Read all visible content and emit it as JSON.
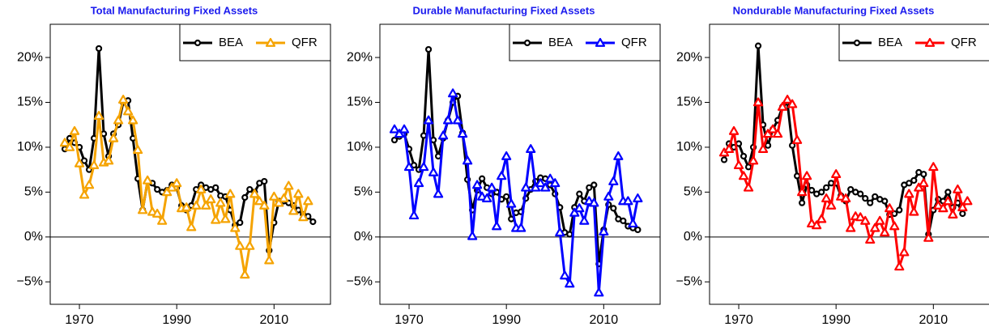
{
  "chart_data": [
    {
      "type": "line",
      "title": "Total Manufacturing Fixed Assets",
      "x": [
        1967,
        1968,
        1969,
        1970,
        1971,
        1972,
        1973,
        1974,
        1975,
        1976,
        1977,
        1978,
        1979,
        1980,
        1981,
        1982,
        1983,
        1984,
        1985,
        1986,
        1987,
        1988,
        1989,
        1990,
        1991,
        1992,
        1993,
        1994,
        1995,
        1996,
        1997,
        1998,
        1999,
        2000,
        2001,
        2002,
        2003,
        2004,
        2005,
        2006,
        2007,
        2008,
        2009,
        2010,
        2011,
        2012,
        2013,
        2014,
        2015,
        2016,
        2017,
        2018
      ],
      "series": [
        {
          "name": "BEA",
          "color": "#000000",
          "marker": "circle",
          "values": [
            9.8,
            11.0,
            10.5,
            10.0,
            8.5,
            7.5,
            11.0,
            21.0,
            11.5,
            9.0,
            11.5,
            12.5,
            15.0,
            15.2,
            11.0,
            6.5,
            3.0,
            6.2,
            6.0,
            5.3,
            5.0,
            5.2,
            5.8,
            5.5,
            3.5,
            3.0,
            3.5,
            5.3,
            5.8,
            5.5,
            5.3,
            5.5,
            4.6,
            4.5,
            3.0,
            1.3,
            1.6,
            4.4,
            5.3,
            5.0,
            6.0,
            6.2,
            -1.5,
            1.6,
            4.0,
            4.0,
            3.8,
            3.5,
            3.0,
            2.5,
            2.3,
            1.7
          ]
        },
        {
          "name": "QFR",
          "color": "#f5a300",
          "marker": "triangle",
          "values": [
            10.5,
            10.0,
            11.8,
            8.2,
            4.7,
            5.8,
            8.0,
            13.5,
            8.3,
            8.5,
            11.0,
            13.0,
            15.3,
            14.0,
            13.0,
            9.7,
            3.0,
            6.3,
            2.8,
            2.6,
            1.8,
            5.0,
            5.5,
            6.0,
            3.2,
            3.3,
            1.1,
            3.5,
            5.3,
            3.5,
            4.2,
            1.9,
            3.8,
            2.0,
            4.8,
            1.0,
            -1.0,
            -4.2,
            -1.0,
            4.8,
            4.0,
            3.5,
            -2.6,
            4.5,
            3.8,
            4.3,
            5.7,
            2.9,
            4.8,
            2.2,
            4.0,
            null
          ]
        }
      ],
      "xlim": [
        1964,
        2021.6
      ],
      "xticks": [
        1970,
        1990,
        2010
      ],
      "ylim": [
        -7.5,
        23.7
      ],
      "yticks": [
        {
          "value": -5,
          "label": "−5%"
        },
        {
          "value": 0,
          "label": "0%"
        },
        {
          "value": 5,
          "label": "5%"
        },
        {
          "value": 10,
          "label": "10%"
        },
        {
          "value": 15,
          "label": "15%"
        },
        {
          "value": 20,
          "label": "20%"
        }
      ],
      "hline": 0,
      "legend": "top-right"
    },
    {
      "type": "line",
      "title": "Durable Manufacturing Fixed Assets",
      "x": [
        1967,
        1968,
        1969,
        1970,
        1971,
        1972,
        1973,
        1974,
        1975,
        1976,
        1977,
        1978,
        1979,
        1980,
        1981,
        1982,
        1983,
        1984,
        1985,
        1986,
        1987,
        1988,
        1989,
        1990,
        1991,
        1992,
        1993,
        1994,
        1995,
        1996,
        1997,
        1998,
        1999,
        2000,
        2001,
        2002,
        2003,
        2004,
        2005,
        2006,
        2007,
        2008,
        2009,
        2010,
        2011,
        2012,
        2013,
        2014,
        2015,
        2016,
        2017,
        2018
      ],
      "series": [
        {
          "name": "BEA",
          "color": "#000000",
          "marker": "circle",
          "values": [
            10.8,
            11.2,
            11.5,
            9.8,
            8.0,
            7.5,
            11.3,
            20.9,
            10.8,
            9.0,
            11.0,
            13.0,
            15.0,
            15.7,
            11.6,
            6.4,
            3.0,
            5.2,
            6.5,
            5.5,
            4.8,
            5.0,
            4.2,
            4.5,
            2.0,
            2.7,
            2.8,
            4.3,
            5.3,
            6.2,
            6.6,
            6.5,
            5.8,
            4.8,
            3.3,
            0.5,
            0.3,
            3.3,
            4.8,
            4.0,
            5.5,
            5.8,
            -3.0,
            0.8,
            3.6,
            3.2,
            2.0,
            1.8,
            1.2,
            1.0,
            0.8,
            null
          ]
        },
        {
          "name": "QFR",
          "color": "#0000ff",
          "marker": "triangle",
          "values": [
            12.0,
            11.5,
            12.0,
            7.8,
            2.4,
            6.0,
            7.8,
            13.0,
            7.2,
            4.8,
            11.3,
            13.0,
            16.0,
            13.0,
            11.5,
            8.5,
            0.1,
            5.8,
            4.5,
            4.3,
            5.5,
            1.2,
            6.8,
            9.0,
            3.7,
            1.0,
            1.0,
            5.5,
            9.8,
            5.5,
            6.0,
            5.5,
            6.5,
            6.0,
            0.5,
            -4.3,
            -5.2,
            2.7,
            3.2,
            1.8,
            4.0,
            3.8,
            -6.2,
            0.6,
            4.5,
            6.2,
            9.0,
            4.0,
            4.0,
            1.5,
            4.3,
            null
          ]
        }
      ],
      "xlim": [
        1964,
        2021.6
      ],
      "xticks": [
        1970,
        1990,
        2010
      ],
      "ylim": [
        -7.5,
        23.7
      ],
      "yticks": [
        {
          "value": -5,
          "label": "−5%"
        },
        {
          "value": 0,
          "label": "0%"
        },
        {
          "value": 5,
          "label": "5%"
        },
        {
          "value": 10,
          "label": "10%"
        },
        {
          "value": 15,
          "label": "15%"
        },
        {
          "value": 20,
          "label": "20%"
        }
      ],
      "hline": 0,
      "legend": "top-right"
    },
    {
      "type": "line",
      "title": "Nondurable Manufacturing Fixed Assets",
      "x": [
        1967,
        1968,
        1969,
        1970,
        1971,
        1972,
        1973,
        1974,
        1975,
        1976,
        1977,
        1978,
        1979,
        1980,
        1981,
        1982,
        1983,
        1984,
        1985,
        1986,
        1987,
        1988,
        1989,
        1990,
        1991,
        1992,
        1993,
        1994,
        1995,
        1996,
        1997,
        1998,
        1999,
        2000,
        2001,
        2002,
        2003,
        2004,
        2005,
        2006,
        2007,
        2008,
        2009,
        2010,
        2011,
        2012,
        2013,
        2014,
        2015,
        2016,
        2017,
        2018
      ],
      "series": [
        {
          "name": "BEA",
          "color": "#000000",
          "marker": "circle",
          "values": [
            8.6,
            10.4,
            10.0,
            10.4,
            9.0,
            7.8,
            10.0,
            21.3,
            12.5,
            10.2,
            12.0,
            13.0,
            14.5,
            15.0,
            10.2,
            6.8,
            3.8,
            5.8,
            5.2,
            4.8,
            5.0,
            5.5,
            6.0,
            6.0,
            4.6,
            4.0,
            5.3,
            5.0,
            4.8,
            4.3,
            3.8,
            4.5,
            4.2,
            4.0,
            2.5,
            2.6,
            3.0,
            5.8,
            6.0,
            6.3,
            7.2,
            7.0,
            0.3,
            3.0,
            4.2,
            4.0,
            5.0,
            3.3,
            3.8,
            2.6,
            null,
            null
          ]
        },
        {
          "name": "QFR",
          "color": "#ff0000",
          "marker": "triangle",
          "values": [
            9.4,
            9.8,
            11.8,
            8.0,
            6.8,
            5.5,
            8.5,
            15.0,
            9.8,
            11.5,
            12.0,
            11.5,
            14.5,
            15.3,
            14.8,
            10.8,
            5.0,
            6.8,
            1.5,
            1.3,
            2.0,
            4.3,
            3.5,
            7.0,
            4.5,
            4.3,
            1.0,
            2.3,
            2.2,
            1.8,
            -0.3,
            1.0,
            1.8,
            0.5,
            3.2,
            1.2,
            -3.3,
            -1.7,
            4.8,
            2.8,
            5.5,
            6.0,
            -0.1,
            7.8,
            3.5,
            3.2,
            4.0,
            2.5,
            5.3,
            3.3,
            4.0,
            null
          ]
        }
      ],
      "xlim": [
        1964,
        2021.6
      ],
      "xticks": [
        1970,
        1990,
        2010
      ],
      "ylim": [
        -7.5,
        23.7
      ],
      "yticks": [
        {
          "value": -5,
          "label": "−5%"
        },
        {
          "value": 0,
          "label": "0%"
        },
        {
          "value": 5,
          "label": "5%"
        },
        {
          "value": 10,
          "label": "10%"
        },
        {
          "value": 15,
          "label": "15%"
        },
        {
          "value": 20,
          "label": "20%"
        }
      ],
      "hline": 0,
      "legend": "top-right"
    }
  ]
}
